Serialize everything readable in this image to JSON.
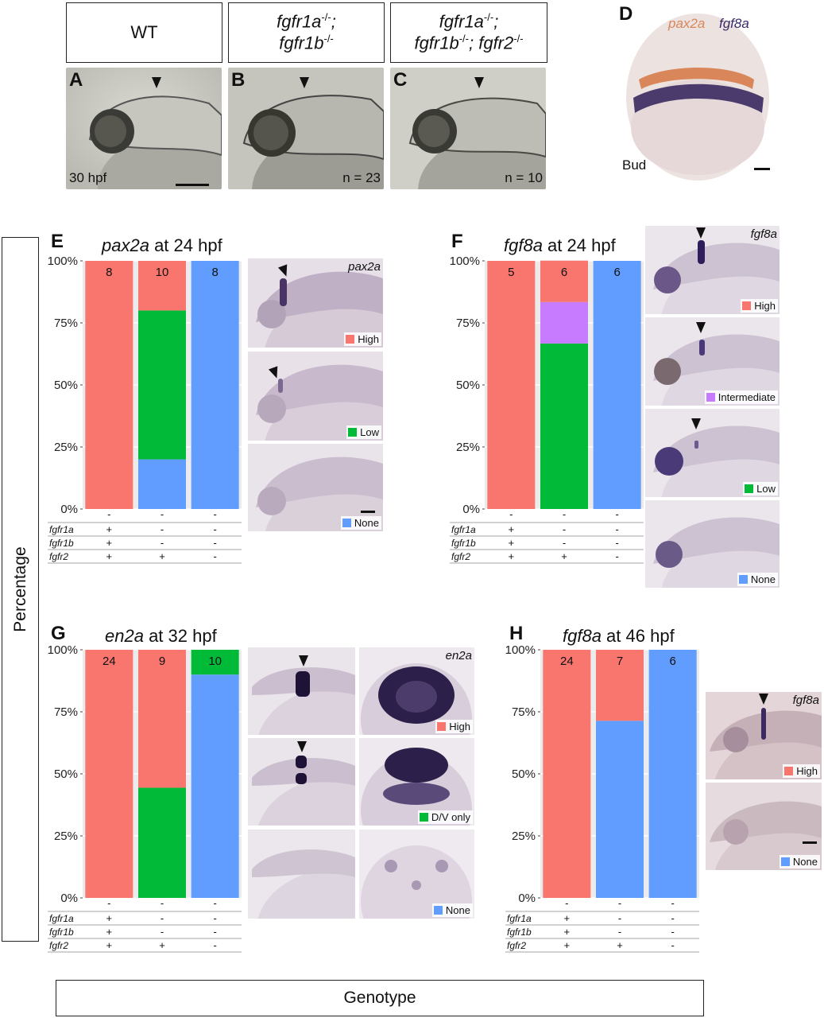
{
  "top": {
    "boxes": [
      {
        "label": "WT"
      },
      {
        "line1": "fgfr1a",
        "sup1": "-/-",
        "line1_end": ";",
        "line2": "fgfr1b",
        "sup2": "-/-",
        "line2_end": ""
      },
      {
        "line1": "fgfr1a",
        "sup1": "-/-",
        "line1_end": ";",
        "line2": "fgfr1b",
        "sup2": "-/-",
        "line2_mid": "; fgfr2",
        "sup3": "-/-"
      }
    ],
    "photos": [
      {
        "letter": "A",
        "text": "30 hpf"
      },
      {
        "letter": "B",
        "text": "n = 23"
      },
      {
        "letter": "C",
        "text": "n = 10"
      }
    ],
    "panel_d": {
      "letter": "D",
      "gene1": "pax2a",
      "gene2": "fgf8a",
      "stage": "Bud"
    }
  },
  "axis_labels": {
    "y": "Percentage",
    "x": "Genotype"
  },
  "colors": {
    "high": "#f8766d",
    "low": "#00ba38",
    "none": "#619cff",
    "intermediate": "#c77cff"
  },
  "chart_data": [
    {
      "panel": "E",
      "type": "bar",
      "stacked": true,
      "gene": "pax2a",
      "title_rest": " at 24 hpf",
      "ylabel": "Percentage",
      "xlabel": "Genotype",
      "yticks": [
        "0%",
        "25%",
        "50%",
        "75%",
        "100%"
      ],
      "ylim": [
        0,
        100
      ],
      "categories": [
        "WT",
        "fgfr1a-/-;fgfr1b-/-",
        "fgfr1a-/-;fgfr1b-/-;fgfr2-/-"
      ],
      "n": [
        "8",
        "10",
        "8"
      ],
      "series": [
        {
          "name": "None",
          "color": "#619cff",
          "values": [
            0,
            20,
            100
          ]
        },
        {
          "name": "Low",
          "color": "#00ba38",
          "values": [
            0,
            60,
            0
          ]
        },
        {
          "name": "High",
          "color": "#f8766d",
          "values": [
            100,
            20,
            0
          ]
        }
      ],
      "genotype_rows": [
        {
          "gene": "fgfr1a",
          "signs": [
            "+",
            "-",
            "-"
          ]
        },
        {
          "gene": "fgfr1b",
          "signs": [
            "+",
            "-",
            "-"
          ]
        },
        {
          "gene": "fgfr2",
          "signs": [
            "+",
            "+",
            "-"
          ]
        }
      ],
      "top_signs": [
        "-",
        "-",
        "-"
      ],
      "images": {
        "gene_label": "pax2a",
        "legend": [
          "High",
          "Low",
          "None"
        ]
      }
    },
    {
      "panel": "F",
      "type": "bar",
      "stacked": true,
      "gene": "fgf8a",
      "title_rest": " at 24 hpf",
      "ylabel": "Percentage",
      "xlabel": "Genotype",
      "yticks": [
        "0%",
        "25%",
        "50%",
        "75%",
        "100%"
      ],
      "ylim": [
        0,
        100
      ],
      "categories": [
        "WT",
        "fgfr1a-/-;fgfr1b-/-",
        "fgfr1a-/-;fgfr1b-/-;fgfr2-/-"
      ],
      "n": [
        "5",
        "6",
        "6"
      ],
      "series": [
        {
          "name": "None",
          "color": "#619cff",
          "values": [
            0,
            0,
            100
          ]
        },
        {
          "name": "Low",
          "color": "#00ba38",
          "values": [
            0,
            66.7,
            0
          ]
        },
        {
          "name": "Intermediate",
          "color": "#c77cff",
          "values": [
            0,
            16.7,
            0
          ]
        },
        {
          "name": "High",
          "color": "#f8766d",
          "values": [
            100,
            16.7,
            0
          ]
        }
      ],
      "genotype_rows": [
        {
          "gene": "fgfr1a",
          "signs": [
            "+",
            "-",
            "-"
          ]
        },
        {
          "gene": "fgfr1b",
          "signs": [
            "+",
            "-",
            "-"
          ]
        },
        {
          "gene": "fgfr2",
          "signs": [
            "+",
            "+",
            "-"
          ]
        }
      ],
      "top_signs": [
        "-",
        "-",
        "-"
      ],
      "images": {
        "gene_label": "fgf8a",
        "legend": [
          "High",
          "Intermediate",
          "Low",
          "None"
        ]
      }
    },
    {
      "panel": "G",
      "type": "bar",
      "stacked": true,
      "gene": "en2a",
      "title_rest": " at 32 hpf",
      "ylabel": "Percentage",
      "xlabel": "Genotype",
      "yticks": [
        "0%",
        "25%",
        "50%",
        "75%",
        "100%"
      ],
      "ylim": [
        0,
        100
      ],
      "categories": [
        "WT",
        "fgfr1a-/-;fgfr1b-/-",
        "fgfr1a-/-;fgfr1b-/-;fgfr2-/-"
      ],
      "n": [
        "24",
        "9",
        "10"
      ],
      "series": [
        {
          "name": "None",
          "color": "#619cff",
          "values": [
            0,
            0,
            90
          ]
        },
        {
          "name": "D/V only",
          "color": "#00ba38",
          "values": [
            0,
            44.4,
            10
          ]
        },
        {
          "name": "High",
          "color": "#f8766d",
          "values": [
            100,
            55.6,
            0
          ]
        }
      ],
      "genotype_rows": [
        {
          "gene": "fgfr1a",
          "signs": [
            "+",
            "-",
            "-"
          ]
        },
        {
          "gene": "fgfr1b",
          "signs": [
            "+",
            "-",
            "-"
          ]
        },
        {
          "gene": "fgfr2",
          "signs": [
            "+",
            "+",
            "-"
          ]
        }
      ],
      "top_signs": [
        "-",
        "-",
        "-"
      ],
      "images": {
        "gene_label": "en2a",
        "legend": [
          "High",
          "D/V only",
          "None"
        ]
      }
    },
    {
      "panel": "H",
      "type": "bar",
      "stacked": true,
      "gene": "fgf8a",
      "title_rest": " at 46 hpf",
      "ylabel": "Percentage",
      "xlabel": "Genotype",
      "yticks": [
        "0%",
        "25%",
        "50%",
        "75%",
        "100%"
      ],
      "ylim": [
        0,
        100
      ],
      "categories": [
        "WT",
        "fgfr1a-/-;fgfr1b-/-",
        "fgfr1a-/-;fgfr1b-/-;fgfr2-/-"
      ],
      "n": [
        "24",
        "7",
        "6"
      ],
      "series": [
        {
          "name": "None",
          "color": "#619cff",
          "values": [
            0,
            71.4,
            100
          ]
        },
        {
          "name": "High",
          "color": "#f8766d",
          "values": [
            100,
            28.6,
            0
          ]
        }
      ],
      "genotype_rows": [
        {
          "gene": "fgfr1a",
          "signs": [
            "+",
            "-",
            "-"
          ]
        },
        {
          "gene": "fgfr1b",
          "signs": [
            "+",
            "-",
            "-"
          ]
        },
        {
          "gene": "fgfr2",
          "signs": [
            "+",
            "+",
            "-"
          ]
        }
      ],
      "top_signs": [
        "-",
        "-",
        "-"
      ],
      "images": {
        "gene_label": "fgf8a",
        "legend": [
          "High",
          "None"
        ]
      }
    }
  ]
}
